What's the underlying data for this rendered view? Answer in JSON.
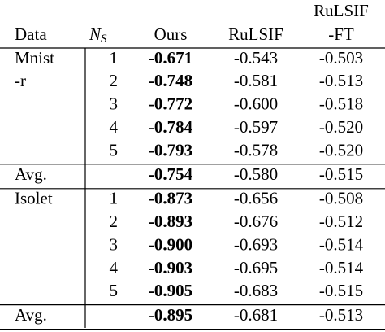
{
  "header": {
    "data": "Data",
    "ns": {
      "base": "N",
      "sub": "S"
    },
    "ours": "Ours",
    "rulsif": "RuLSIF",
    "ft": [
      "RuLSIF",
      "-FT"
    ]
  },
  "groups": [
    {
      "label": [
        "Mnist",
        "-r"
      ],
      "rows": [
        [
          "1",
          "-0.671",
          "-0.543",
          "-0.503"
        ],
        [
          "2",
          "-0.748",
          "-0.581",
          "-0.513"
        ],
        [
          "3",
          "-0.772",
          "-0.600",
          "-0.518"
        ],
        [
          "4",
          "-0.784",
          "-0.597",
          "-0.520"
        ],
        [
          "5",
          "-0.793",
          "-0.578",
          "-0.520"
        ]
      ],
      "avg": {
        "label": "Avg.",
        "values": [
          "-0.754",
          "-0.580",
          "-0.515"
        ]
      }
    },
    {
      "label": [
        "Isolet"
      ],
      "rows": [
        [
          "1",
          "-0.873",
          "-0.656",
          "-0.508"
        ],
        [
          "2",
          "-0.893",
          "-0.676",
          "-0.512"
        ],
        [
          "3",
          "-0.900",
          "-0.693",
          "-0.514"
        ],
        [
          "4",
          "-0.903",
          "-0.695",
          "-0.514"
        ],
        [
          "5",
          "-0.905",
          "-0.683",
          "-0.515"
        ]
      ],
      "avg": {
        "label": "Avg.",
        "values": [
          "-0.895",
          "-0.681",
          "-0.513"
        ]
      }
    }
  ]
}
